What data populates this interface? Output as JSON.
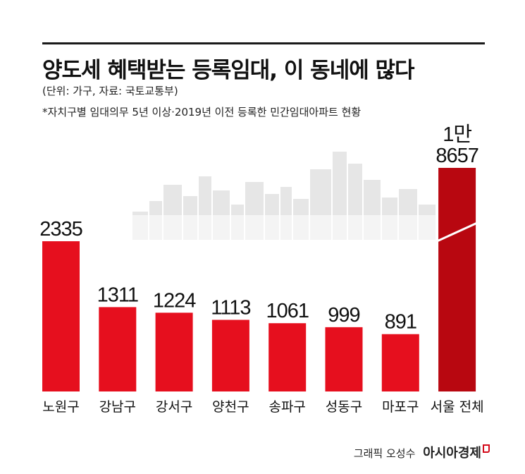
{
  "header": {
    "title": "양도세 혜택받는 등록임대, 이 동네에 많다",
    "unit": "(단위: 가구, 자료: 국토교통부)",
    "note": "*자치구별 임대의무 5년 이상·2019년 이전 등록한 민간임대아파트 현황"
  },
  "credit": {
    "author": "그래픽 오성수",
    "brand": "아시아경제"
  },
  "colors": {
    "bar": "#e60f1e",
    "bar_total": "#b80710",
    "skyline": "#e6e6e6"
  },
  "chart_data": {
    "type": "bar",
    "categories": [
      "노원구",
      "강남구",
      "강서구",
      "양천구",
      "송파구",
      "성동구",
      "마포구",
      "서울 전체"
    ],
    "values": [
      2335,
      1311,
      1224,
      1113,
      1061,
      999,
      891,
      18657
    ],
    "value_labels": [
      "2335",
      "1311",
      "1224",
      "1113",
      "1061",
      "999",
      "891",
      "1만\n8657"
    ],
    "axis_break_on": "서울 전체",
    "grid": false,
    "legend": "none"
  }
}
